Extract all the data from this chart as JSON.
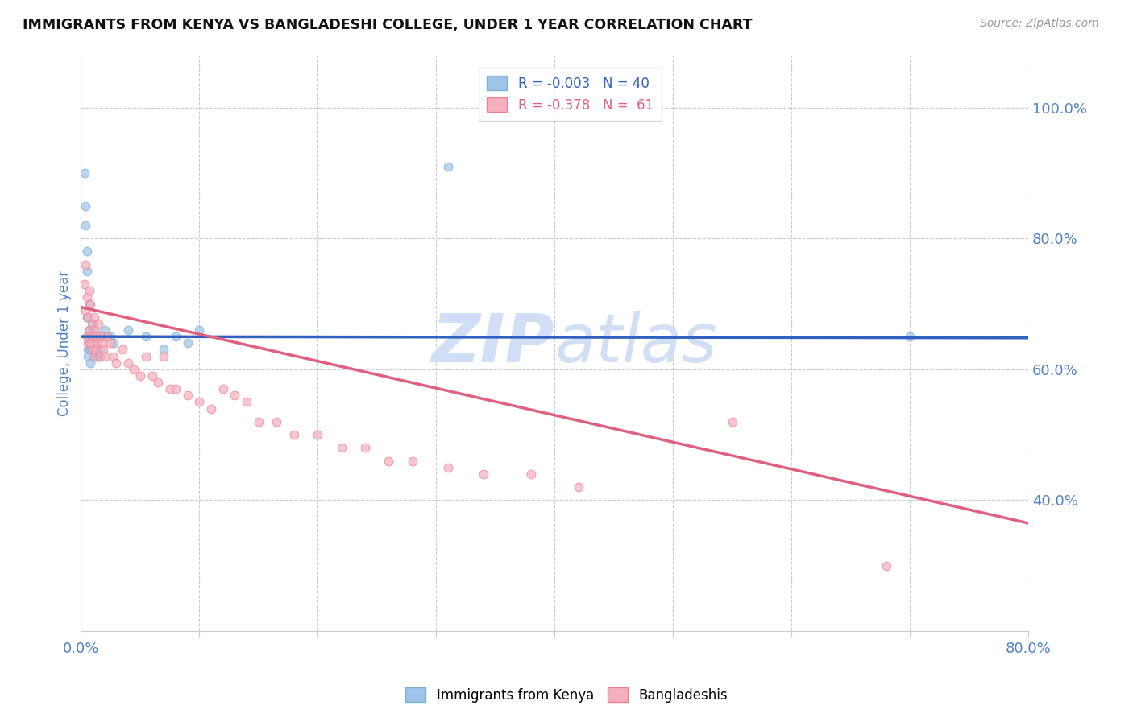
{
  "title": "IMMIGRANTS FROM KENYA VS BANGLADESHI COLLEGE, UNDER 1 YEAR CORRELATION CHART",
  "source_text": "Source: ZipAtlas.com",
  "ylabel": "College, Under 1 year",
  "xlim": [
    0.0,
    0.8
  ],
  "ylim": [
    0.2,
    1.08
  ],
  "y_ticks_right": [
    0.4,
    0.6,
    0.8,
    1.0
  ],
  "y_tick_labels_right": [
    "40.0%",
    "60.0%",
    "80.0%",
    "100.0%"
  ],
  "legend_r1": "R = -0.003   N = 40",
  "legend_r2": "R = -0.378   N =  61",
  "blue_scatter_x": [
    0.003,
    0.004,
    0.004,
    0.005,
    0.005,
    0.005,
    0.006,
    0.006,
    0.006,
    0.007,
    0.007,
    0.007,
    0.008,
    0.008,
    0.009,
    0.009,
    0.009,
    0.01,
    0.01,
    0.01,
    0.011,
    0.011,
    0.012,
    0.012,
    0.013,
    0.014,
    0.015,
    0.016,
    0.018,
    0.02,
    0.025,
    0.028,
    0.04,
    0.055,
    0.07,
    0.08,
    0.09,
    0.1,
    0.31,
    0.7
  ],
  "blue_scatter_y": [
    0.9,
    0.85,
    0.82,
    0.78,
    0.75,
    0.68,
    0.65,
    0.63,
    0.62,
    0.64,
    0.66,
    0.7,
    0.63,
    0.61,
    0.65,
    0.67,
    0.63,
    0.64,
    0.65,
    0.66,
    0.63,
    0.65,
    0.62,
    0.64,
    0.63,
    0.62,
    0.62,
    0.63,
    0.65,
    0.66,
    0.65,
    0.64,
    0.66,
    0.65,
    0.63,
    0.65,
    0.64,
    0.66,
    0.91,
    0.65
  ],
  "pink_scatter_x": [
    0.003,
    0.004,
    0.004,
    0.005,
    0.005,
    0.006,
    0.006,
    0.007,
    0.007,
    0.008,
    0.008,
    0.009,
    0.009,
    0.01,
    0.01,
    0.011,
    0.011,
    0.012,
    0.013,
    0.013,
    0.014,
    0.015,
    0.016,
    0.017,
    0.018,
    0.019,
    0.02,
    0.022,
    0.025,
    0.028,
    0.03,
    0.035,
    0.04,
    0.045,
    0.05,
    0.055,
    0.06,
    0.065,
    0.07,
    0.075,
    0.08,
    0.09,
    0.1,
    0.11,
    0.12,
    0.13,
    0.14,
    0.15,
    0.165,
    0.18,
    0.2,
    0.22,
    0.24,
    0.26,
    0.28,
    0.31,
    0.34,
    0.38,
    0.42,
    0.55,
    0.68
  ],
  "pink_scatter_y": [
    0.73,
    0.76,
    0.69,
    0.71,
    0.65,
    0.64,
    0.68,
    0.72,
    0.66,
    0.64,
    0.7,
    0.65,
    0.63,
    0.67,
    0.64,
    0.68,
    0.62,
    0.66,
    0.63,
    0.65,
    0.64,
    0.67,
    0.62,
    0.65,
    0.64,
    0.63,
    0.62,
    0.65,
    0.64,
    0.62,
    0.61,
    0.63,
    0.61,
    0.6,
    0.59,
    0.62,
    0.59,
    0.58,
    0.62,
    0.57,
    0.57,
    0.56,
    0.55,
    0.54,
    0.57,
    0.56,
    0.55,
    0.52,
    0.52,
    0.5,
    0.5,
    0.48,
    0.48,
    0.46,
    0.46,
    0.45,
    0.44,
    0.44,
    0.42,
    0.52,
    0.3
  ],
  "blue_line_x": [
    0.0,
    0.8
  ],
  "blue_line_y": [
    0.65,
    0.648
  ],
  "pink_line_x": [
    0.0,
    0.8
  ],
  "pink_line_y": [
    0.695,
    0.365
  ],
  "dashed_line_y": 0.649,
  "scatter_size": 60,
  "blue_color": "#9ec4e8",
  "pink_color": "#f5b0be",
  "blue_color_edge": "#7bafd6",
  "pink_color_edge": "#f08090",
  "blue_line_color": "#3060c0",
  "pink_line_color": "#e06080",
  "dashed_line_color": "#aaaacc",
  "background_color": "#ffffff",
  "title_color": "#111111",
  "axis_label_color": "#5080cc",
  "watermark_color": "#d0dff5"
}
